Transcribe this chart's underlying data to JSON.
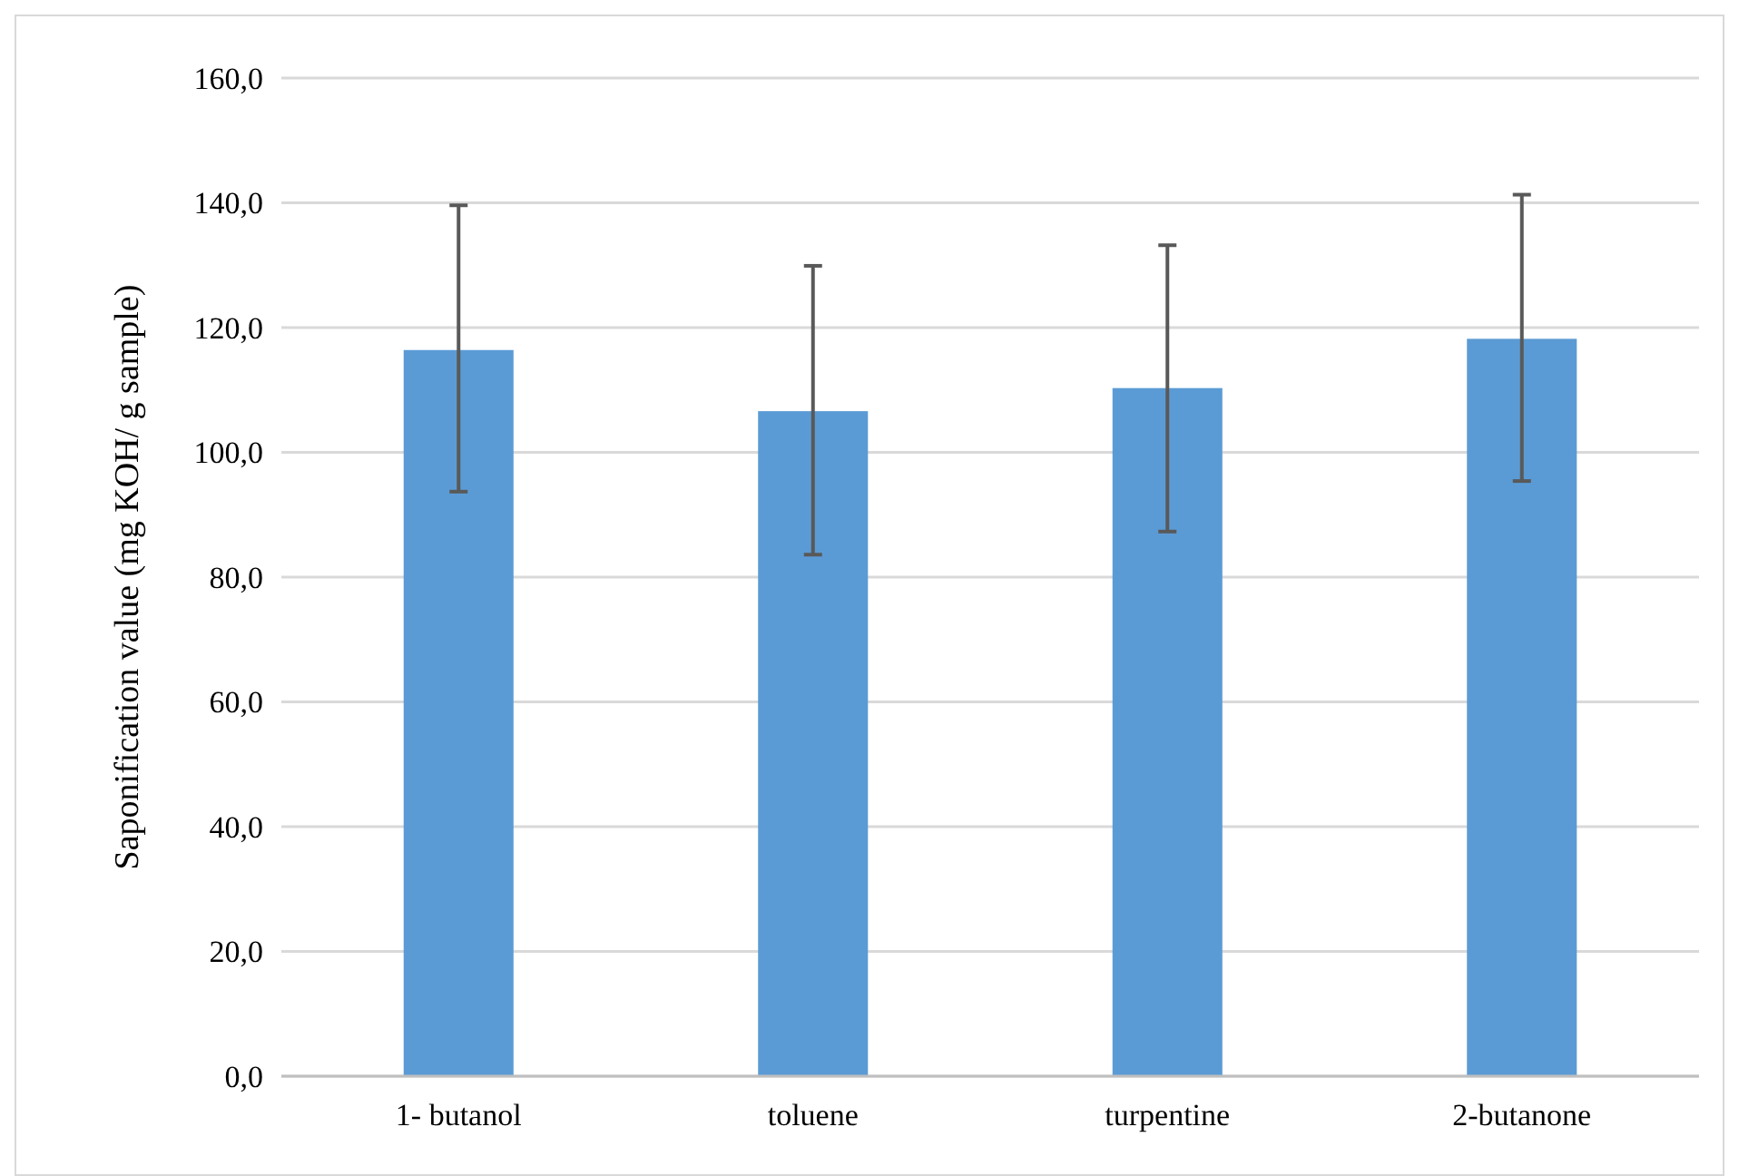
{
  "chart_data": {
    "type": "bar",
    "ylabel": "Saponification value (mg KOH/ g sample)",
    "categories": [
      "1- butanol",
      "toluene",
      "turpentine",
      "2-butanone"
    ],
    "values": [
      116.4,
      106.6,
      110.3,
      118.2
    ],
    "errors": [
      [
        93.7,
        139.6
      ],
      [
        83.6,
        129.9
      ],
      [
        87.3,
        133.2
      ],
      [
        95.4,
        141.3
      ]
    ],
    "color": "#5b9bd5",
    "ylim": [
      0,
      160
    ],
    "yticks": [
      {
        "value": 0,
        "label": "0,0"
      },
      {
        "value": 20,
        "label": "20,0"
      },
      {
        "value": 40,
        "label": "40,0"
      },
      {
        "value": 60,
        "label": "60,0"
      },
      {
        "value": 80,
        "label": "80,0"
      },
      {
        "value": 100,
        "label": "100,0"
      },
      {
        "value": 120,
        "label": "120,0"
      },
      {
        "value": 140,
        "label": "140,0"
      },
      {
        "value": 160,
        "label": "160,0"
      }
    ],
    "grid": "y"
  }
}
